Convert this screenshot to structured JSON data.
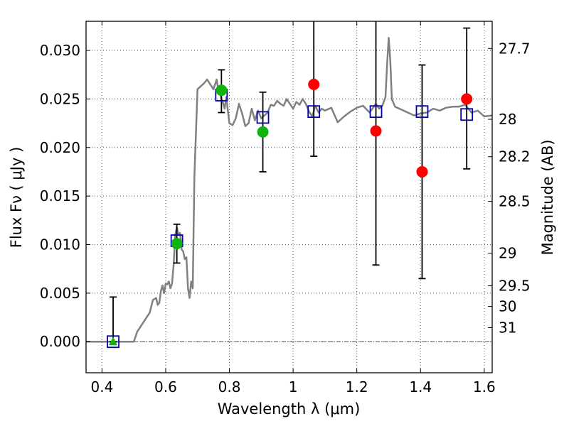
{
  "chart_data": {
    "type": "scatter",
    "xlabel": "Wavelength  λ (μm)",
    "ylabel": "Flux  Fν  ( μJy )",
    "ylabel_right": "Magnitude (AB)",
    "xlim": [
      0.35,
      1.625
    ],
    "ylim": [
      -0.0032,
      0.033
    ],
    "grid": true,
    "x_ticks": [
      {
        "v": 0.4,
        "label": "0.4"
      },
      {
        "v": 0.6,
        "label": "0.6"
      },
      {
        "v": 0.8,
        "label": "0.8"
      },
      {
        "v": 1.0,
        "label": "1"
      },
      {
        "v": 1.2,
        "label": "1.2"
      },
      {
        "v": 1.4,
        "label": "1.4"
      },
      {
        "v": 1.6,
        "label": "1.6"
      }
    ],
    "y_ticks": [
      {
        "v": 0.0,
        "label": "0.000"
      },
      {
        "v": 0.005,
        "label": "0.005"
      },
      {
        "v": 0.01,
        "label": "0.010"
      },
      {
        "v": 0.015,
        "label": "0.015"
      },
      {
        "v": 0.02,
        "label": "0.020"
      },
      {
        "v": 0.025,
        "label": "0.025"
      },
      {
        "v": 0.03,
        "label": "0.030"
      }
    ],
    "mag_ticks": [
      {
        "v": 27.7,
        "label": "27.7"
      },
      {
        "v": 28.0,
        "label": "28"
      },
      {
        "v": 28.2,
        "label": "28.2"
      },
      {
        "v": 28.5,
        "label": "28.5"
      },
      {
        "v": 29.0,
        "label": "29"
      },
      {
        "v": 29.5,
        "label": "29.5"
      },
      {
        "v": 30.0,
        "label": "30"
      },
      {
        "v": 31.0,
        "label": "31"
      }
    ],
    "colors": {
      "model": "#808080",
      "green": "#11b311",
      "red": "#ff0000",
      "model_box": "#0000bb",
      "errorbar": "#000000",
      "grid": "#555555"
    },
    "model_spectrum": {
      "x": [
        0.35,
        0.5,
        0.51,
        0.53,
        0.55,
        0.56,
        0.57,
        0.575,
        0.58,
        0.585,
        0.59,
        0.595,
        0.6,
        0.605,
        0.61,
        0.615,
        0.62,
        0.625,
        0.63,
        0.635,
        0.64,
        0.645,
        0.65,
        0.655,
        0.66,
        0.665,
        0.67,
        0.675,
        0.68,
        0.685,
        0.69,
        0.7,
        0.71,
        0.72,
        0.73,
        0.74,
        0.75,
        0.76,
        0.765,
        0.77,
        0.775,
        0.78,
        0.785,
        0.79,
        0.8,
        0.81,
        0.82,
        0.83,
        0.84,
        0.85,
        0.86,
        0.87,
        0.88,
        0.89,
        0.9,
        0.91,
        0.92,
        0.93,
        0.94,
        0.95,
        0.96,
        0.97,
        0.98,
        0.99,
        1.0,
        1.01,
        1.02,
        1.03,
        1.04,
        1.05,
        1.06,
        1.07,
        1.08,
        1.09,
        1.1,
        1.12,
        1.14,
        1.16,
        1.18,
        1.2,
        1.22,
        1.24,
        1.26,
        1.27,
        1.28,
        1.29,
        1.295,
        1.3,
        1.305,
        1.31,
        1.32,
        1.34,
        1.36,
        1.38,
        1.4,
        1.42,
        1.44,
        1.46,
        1.48,
        1.5,
        1.52,
        1.54,
        1.56,
        1.58,
        1.6,
        1.625
      ],
      "y": [
        0.0,
        0.0,
        0.001,
        0.002,
        0.003,
        0.0043,
        0.0045,
        0.0038,
        0.004,
        0.0052,
        0.0058,
        0.005,
        0.006,
        0.0059,
        0.0062,
        0.0055,
        0.006,
        0.008,
        0.011,
        0.0118,
        0.011,
        0.0112,
        0.0095,
        0.0093,
        0.0085,
        0.0087,
        0.0055,
        0.0045,
        0.0062,
        0.0055,
        0.017,
        0.026,
        0.0263,
        0.0266,
        0.027,
        0.0265,
        0.026,
        0.027,
        0.026,
        0.0258,
        0.025,
        0.0246,
        0.024,
        0.0252,
        0.0225,
        0.0223,
        0.023,
        0.0245,
        0.0235,
        0.0222,
        0.0225,
        0.024,
        0.0228,
        0.0238,
        0.023,
        0.0233,
        0.0236,
        0.0244,
        0.0243,
        0.0248,
        0.0245,
        0.0243,
        0.025,
        0.0245,
        0.024,
        0.0247,
        0.0244,
        0.025,
        0.0245,
        0.0237,
        0.0232,
        0.0243,
        0.0236,
        0.024,
        0.0238,
        0.0241,
        0.0226,
        0.0232,
        0.0237,
        0.0241,
        0.0243,
        0.0236,
        0.0245,
        0.024,
        0.0243,
        0.0252,
        0.0285,
        0.0313,
        0.029,
        0.025,
        0.0242,
        0.0239,
        0.0236,
        0.0233,
        0.0235,
        0.0236,
        0.024,
        0.0238,
        0.0241,
        0.0242,
        0.0242,
        0.0244,
        0.0236,
        0.0238,
        0.0232,
        0.0233
      ]
    },
    "series": [
      {
        "marker": "square",
        "x": [
          0.435,
          0.635,
          0.775,
          0.905,
          1.065,
          1.26,
          1.405,
          1.545
        ],
        "y": [
          0.0,
          0.0104,
          0.0254,
          0.0231,
          0.0237,
          0.0237,
          0.0237,
          0.0234
        ]
      },
      {
        "marker": "circle-green",
        "x": [
          0.635,
          0.775,
          0.905
        ],
        "y": [
          0.0101,
          0.0259,
          0.0216
        ]
      },
      {
        "marker": "triangle-green",
        "x": [
          0.435
        ],
        "y": [
          0.0
        ]
      },
      {
        "marker": "circle-red",
        "x": [
          1.065,
          1.26,
          1.405,
          1.545
        ],
        "y": [
          0.0265,
          0.0217,
          0.0175,
          0.025
        ]
      }
    ],
    "error_bars": [
      {
        "x": 0.435,
        "low": 0.0,
        "high": 0.0046
      },
      {
        "x": 0.635,
        "low": 0.0081,
        "high": 0.0121
      },
      {
        "x": 0.775,
        "low": 0.0236,
        "high": 0.028
      },
      {
        "x": 0.905,
        "low": 0.0175,
        "high": 0.0257
      },
      {
        "x": 1.065,
        "low": 0.0191,
        "high": 0.034
      },
      {
        "x": 1.26,
        "low": 0.0079,
        "high": 0.034
      },
      {
        "x": 1.405,
        "low": 0.0065,
        "high": 0.0285
      },
      {
        "x": 1.545,
        "low": 0.0178,
        "high": 0.0323
      }
    ]
  }
}
